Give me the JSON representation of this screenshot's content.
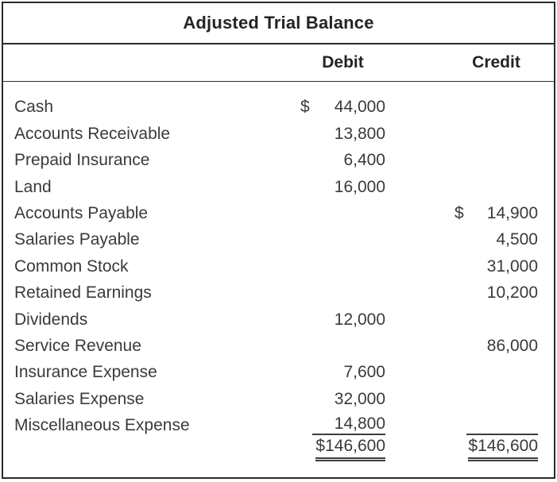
{
  "title": "Adjusted Trial Balance",
  "header": {
    "debit_label": "Debit",
    "credit_label": "Credit"
  },
  "rows": [
    {
      "account": "Cash",
      "debit_symbol": "$",
      "debit": "44,000",
      "credit_symbol": "",
      "credit": ""
    },
    {
      "account": "Accounts Receivable",
      "debit_symbol": "",
      "debit": "13,800",
      "credit_symbol": "",
      "credit": ""
    },
    {
      "account": "Prepaid Insurance",
      "debit_symbol": "",
      "debit": "6,400",
      "credit_symbol": "",
      "credit": ""
    },
    {
      "account": "Land",
      "debit_symbol": "",
      "debit": "16,000",
      "credit_symbol": "",
      "credit": ""
    },
    {
      "account": "Accounts Payable",
      "debit_symbol": "",
      "debit": "",
      "credit_symbol": "$",
      "credit": "14,900"
    },
    {
      "account": "Salaries Payable",
      "debit_symbol": "",
      "debit": "",
      "credit_symbol": "",
      "credit": "4,500"
    },
    {
      "account": "Common Stock",
      "debit_symbol": "",
      "debit": "",
      "credit_symbol": "",
      "credit": "31,000"
    },
    {
      "account": "Retained Earnings",
      "debit_symbol": "",
      "debit": "",
      "credit_symbol": "",
      "credit": "10,200"
    },
    {
      "account": "Dividends",
      "debit_symbol": "",
      "debit": "12,000",
      "credit_symbol": "",
      "credit": ""
    },
    {
      "account": "Service Revenue",
      "debit_symbol": "",
      "debit": "",
      "credit_symbol": "",
      "credit": "86,000"
    },
    {
      "account": "Insurance Expense",
      "debit_symbol": "",
      "debit": "7,600",
      "credit_symbol": "",
      "credit": ""
    },
    {
      "account": "Salaries Expense",
      "debit_symbol": "",
      "debit": "32,000",
      "credit_symbol": "",
      "credit": ""
    },
    {
      "account": "Miscellaneous Expense",
      "debit_symbol": "",
      "debit": "14,800",
      "credit_symbol": "",
      "credit": ""
    }
  ],
  "totals": {
    "debit": "$146,600",
    "credit": "$146,600"
  },
  "colors": {
    "background": "#ffffff",
    "text": "#3a3a3a",
    "heading_text": "#242424",
    "border": "#2b2b2b",
    "rule": "#3c3c3c"
  }
}
